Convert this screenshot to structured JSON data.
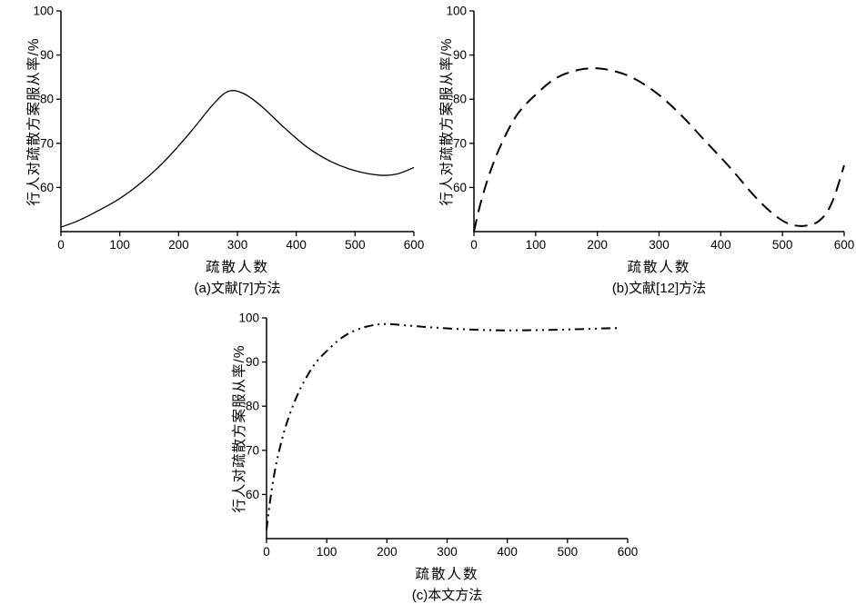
{
  "colors": {
    "line": "#000000",
    "text": "#000000",
    "background": "#ffffff"
  },
  "chart_data": [
    {
      "type": "line",
      "caption": "(a)文献[7]方法",
      "xlabel": "疏散人数",
      "ylabel": "行人对疏散方案服从率/%",
      "xlim": [
        0,
        600
      ],
      "ylim": [
        50,
        100
      ],
      "xticks": [
        0,
        100,
        200,
        300,
        400,
        500,
        600
      ],
      "yticks": [
        60,
        70,
        80,
        90,
        100
      ],
      "grid": false,
      "legend": "none",
      "line_dash": "solid",
      "series": [
        {
          "name": "文献[7]方法",
          "x": [
            0,
            30,
            60,
            100,
            140,
            180,
            220,
            260,
            285,
            310,
            340,
            380,
            420,
            460,
            500,
            540,
            570,
            600
          ],
          "y": [
            51,
            52.5,
            54.5,
            57.5,
            61.5,
            66.5,
            72.5,
            79,
            81.8,
            81.3,
            78.5,
            73.5,
            69,
            65.8,
            63.8,
            62.8,
            63,
            64.5
          ]
        }
      ]
    },
    {
      "type": "line",
      "caption": "(b)文献[12]方法",
      "xlabel": "疏散人数",
      "ylabel": "行人对疏散方案服从率/%",
      "xlim": [
        0,
        600
      ],
      "ylim": [
        50,
        100
      ],
      "xticks": [
        0,
        100,
        200,
        300,
        400,
        500,
        600
      ],
      "yticks": [
        60,
        70,
        80,
        90,
        100
      ],
      "grid": false,
      "legend": "none",
      "line_dash": "dashed",
      "series": [
        {
          "name": "文献[12]方法",
          "x": [
            0,
            10,
            25,
            45,
            70,
            100,
            130,
            160,
            190,
            220,
            255,
            295,
            335,
            375,
            415,
            455,
            485,
            510,
            535,
            560,
            580,
            600
          ],
          "y": [
            50,
            56,
            63,
            70,
            76.5,
            81,
            84.5,
            86.3,
            87,
            86.6,
            85,
            81.5,
            76.5,
            70.5,
            64.5,
            58,
            54,
            51.8,
            51.3,
            52.5,
            56.5,
            65
          ]
        }
      ]
    },
    {
      "type": "line",
      "caption": "(c)本文方法",
      "xlabel": "疏散人数",
      "ylabel": "行人对疏散方案服从率/%",
      "xlim": [
        0,
        600
      ],
      "ylim": [
        50,
        100
      ],
      "xticks": [
        0,
        100,
        200,
        300,
        400,
        500,
        600
      ],
      "yticks": [
        60,
        70,
        80,
        90,
        100
      ],
      "grid": false,
      "legend": "none",
      "line_dash": "dashdotdot",
      "series": [
        {
          "name": "本文方法",
          "x": [
            0,
            4,
            8,
            14,
            22,
            32,
            45,
            60,
            80,
            100,
            125,
            150,
            175,
            200,
            240,
            280,
            330,
            380,
            430,
            480,
            530,
            585
          ],
          "y": [
            52,
            56.5,
            60.5,
            65.5,
            70.5,
            75.5,
            80.5,
            85,
            89.5,
            92.5,
            95.5,
            97.3,
            98.3,
            98.6,
            98.2,
            97.8,
            97.4,
            97.2,
            97.2,
            97.3,
            97.5,
            97.7
          ]
        }
      ]
    }
  ]
}
